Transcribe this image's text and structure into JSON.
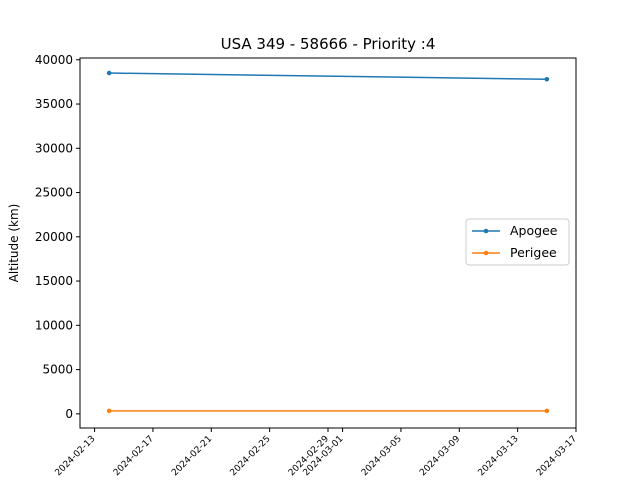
{
  "chart_data": {
    "type": "line",
    "title": "USA 349 - 58666 - Priority :4",
    "xlabel": "",
    "ylabel": "Altitude (km)",
    "x_tick_labels": [
      "2024-02-13",
      "2024-02-17",
      "2024-02-21",
      "2024-02-25",
      "2024-02-29",
      "2024-03-01",
      "2024-03-05",
      "2024-03-09",
      "2024-03-13",
      "2024-03-17"
    ],
    "y_tick_labels": [
      "0",
      "5000",
      "10000",
      "15000",
      "20000",
      "25000",
      "30000",
      "35000",
      "40000"
    ],
    "xlim": [
      "2024-02-12",
      "2024-03-17"
    ],
    "ylim": [
      -1600,
      40200
    ],
    "grid": false,
    "legend_placement": "center-right",
    "series": [
      {
        "name": "Apogee",
        "color": "#1f77b4",
        "x": [
          "2024-02-14",
          "2024-03-15"
        ],
        "y": [
          38500,
          37800
        ]
      },
      {
        "name": "Perigee",
        "color": "#ff7f0e",
        "x": [
          "2024-02-14",
          "2024-03-15"
        ],
        "y": [
          330,
          330
        ]
      }
    ]
  }
}
